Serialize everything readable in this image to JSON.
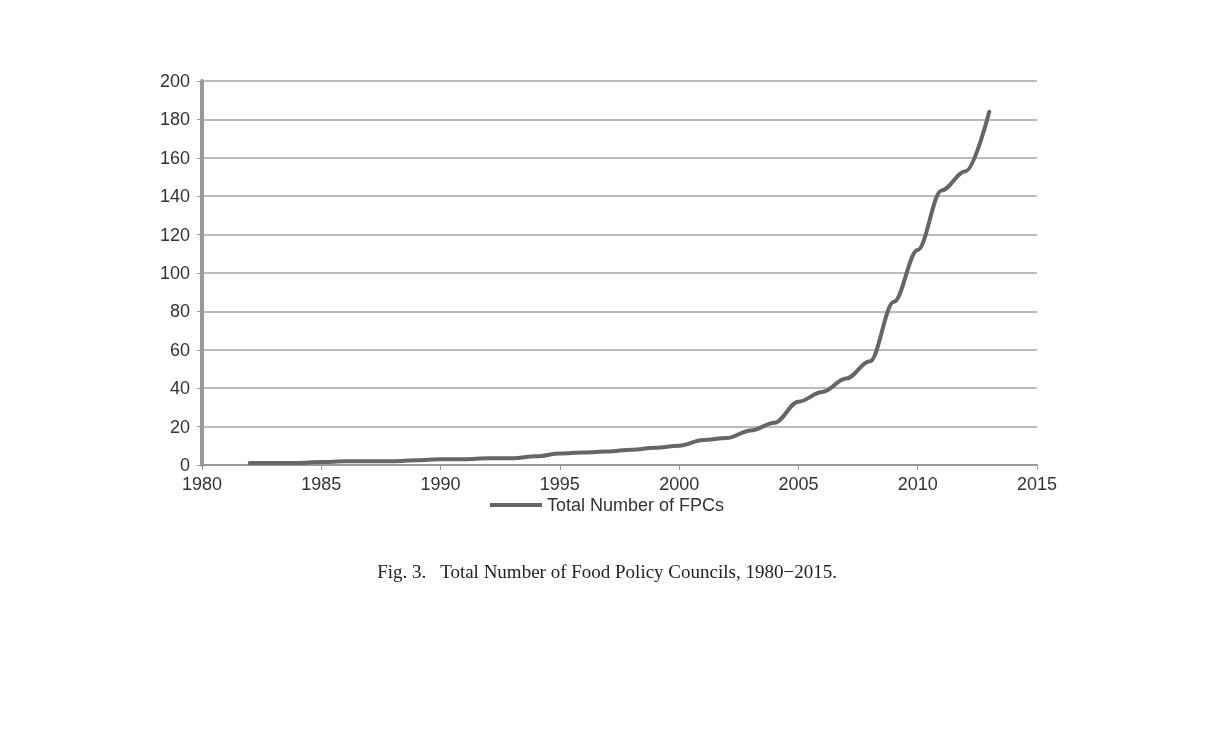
{
  "chart_data": {
    "type": "line",
    "title": "Fig. 3.   Total Number of Food Policy Councils, 1980−2015.",
    "x": [
      1982,
      1983,
      1984,
      1985,
      1986,
      1987,
      1988,
      1989,
      1990,
      1991,
      1992,
      1993,
      1994,
      1995,
      1996,
      1997,
      1998,
      1999,
      2000,
      2001,
      2002,
      2003,
      2004,
      2005,
      2006,
      2007,
      2008,
      2009,
      2010,
      2011,
      2012,
      2013
    ],
    "series": [
      {
        "name": "Total Number of FPCs",
        "color": "#666666",
        "values": [
          1,
          1,
          1,
          1.5,
          2,
          2,
          2,
          2.5,
          3,
          3,
          3.5,
          3.5,
          4.5,
          6,
          6.5,
          7,
          8,
          9,
          10,
          13,
          14,
          18,
          22,
          33,
          38,
          45,
          54,
          85,
          112,
          143,
          153,
          184
        ]
      }
    ],
    "xlim": [
      1980,
      2015
    ],
    "xticks": [
      1980,
      1985,
      1990,
      1995,
      2000,
      2005,
      2010,
      2015
    ],
    "ylim": [
      0,
      200
    ],
    "yticks": [
      0,
      20,
      40,
      60,
      80,
      100,
      120,
      140,
      160,
      180,
      200
    ],
    "grid": "y",
    "legend": "bottom",
    "marker": "none",
    "line_style": "solid"
  }
}
